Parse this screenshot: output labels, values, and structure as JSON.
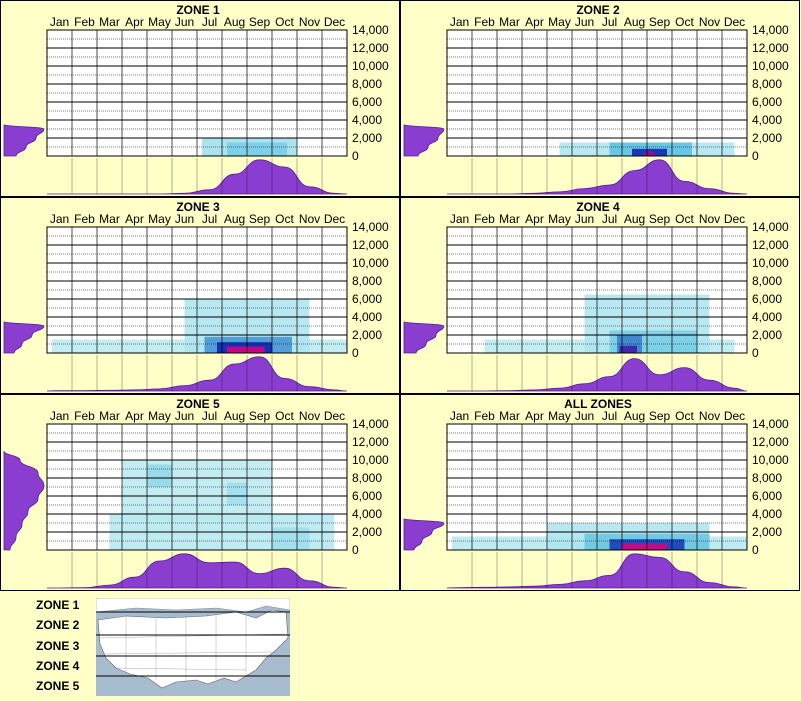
{
  "months": [
    "Jan",
    "Feb",
    "Mar",
    "Apr",
    "May",
    "Jun",
    "Jul",
    "Aug",
    "Sep",
    "Oct",
    "Nov",
    "Dec"
  ],
  "y_ticks": [
    "14,000",
    "12,000",
    "10,000",
    "8,000",
    "6,000",
    "4,000",
    "2,000",
    "0"
  ],
  "colors": {
    "background": "#ffffc8",
    "curve": "#8a3ed0",
    "heat_low": "#d6f6f6",
    "heat_mid": "#58c0e0",
    "heat_high": "#0a1eb0",
    "heat_peak": "#e0007a"
  },
  "chart_data": [
    {
      "type": "heatmap",
      "title": "ZONE 1",
      "x_categories": [
        "Jan",
        "Feb",
        "Mar",
        "Apr",
        "May",
        "Jun",
        "Jul",
        "Aug",
        "Sep",
        "Oct",
        "Nov",
        "Dec"
      ],
      "ylim": [
        0,
        14000
      ],
      "month_density": [
        0,
        0,
        0,
        0,
        0,
        0.02,
        0.12,
        0.55,
        0.95,
        0.75,
        0.2,
        0.02
      ],
      "elevation_density": [
        0.3,
        0.55,
        0.8,
        1.0
      ],
      "heat_cells": [
        {
          "month_start": 6.2,
          "month_end": 10,
          "elev_low": 0,
          "elev_high": 2000,
          "intensity": 0.2
        },
        {
          "month_start": 7.2,
          "month_end": 9.6,
          "elev_low": 0,
          "elev_high": 1500,
          "intensity": 0.35
        }
      ]
    },
    {
      "type": "heatmap",
      "title": "ZONE 2",
      "x_categories": [
        "Jan",
        "Feb",
        "Mar",
        "Apr",
        "May",
        "Jun",
        "Jul",
        "Aug",
        "Sep",
        "Oct",
        "Nov",
        "Dec"
      ],
      "ylim": [
        0,
        14000
      ],
      "month_density": [
        0,
        0,
        0,
        0.02,
        0.06,
        0.15,
        0.25,
        0.65,
        0.95,
        0.35,
        0.15,
        0.02
      ],
      "elevation_density": [
        0.35,
        0.6,
        0.85,
        1.0
      ],
      "heat_cells": [
        {
          "month_start": 4.5,
          "month_end": 11.5,
          "elev_low": 0,
          "elev_high": 1500,
          "intensity": 0.15
        },
        {
          "month_start": 6.5,
          "month_end": 9.8,
          "elev_low": 0,
          "elev_high": 1500,
          "intensity": 0.45
        },
        {
          "month_start": 7.4,
          "month_end": 8.8,
          "elev_low": 0,
          "elev_high": 800,
          "intensity": 0.8
        },
        {
          "month_start": 7.9,
          "month_end": 8.3,
          "elev_low": 0,
          "elev_high": 500,
          "intensity": 0.95
        }
      ]
    },
    {
      "type": "heatmap",
      "title": "ZONE 3",
      "x_categories": [
        "Jan",
        "Feb",
        "Mar",
        "Apr",
        "May",
        "Jun",
        "Jul",
        "Aug",
        "Sep",
        "Oct",
        "Nov",
        "Dec"
      ],
      "ylim": [
        0,
        14000
      ],
      "month_density": [
        0.01,
        0.01,
        0.02,
        0.03,
        0.06,
        0.15,
        0.3,
        0.75,
        0.95,
        0.35,
        0.12,
        0.03
      ],
      "elevation_density": [
        0.25,
        0.45,
        0.7,
        1.0
      ],
      "heat_cells": [
        {
          "month_start": 0.2,
          "month_end": 12,
          "elev_low": 0,
          "elev_high": 1500,
          "intensity": 0.1
        },
        {
          "month_start": 5.5,
          "month_end": 10.5,
          "elev_low": 0,
          "elev_high": 6000,
          "intensity": 0.15
        },
        {
          "month_start": 6.3,
          "month_end": 9.8,
          "elev_low": 0,
          "elev_high": 1800,
          "intensity": 0.55
        },
        {
          "month_start": 6.8,
          "month_end": 9.0,
          "elev_low": 0,
          "elev_high": 1200,
          "intensity": 0.8
        },
        {
          "month_start": 7.2,
          "month_end": 8.7,
          "elev_low": 0,
          "elev_high": 700,
          "intensity": 1.0
        }
      ]
    },
    {
      "type": "heatmap",
      "title": "ZONE 4",
      "x_categories": [
        "Jan",
        "Feb",
        "Mar",
        "Apr",
        "May",
        "Jun",
        "Jul",
        "Aug",
        "Sep",
        "Oct",
        "Nov",
        "Dec"
      ],
      "ylim": [
        0,
        14000
      ],
      "month_density": [
        0,
        0,
        0.01,
        0.03,
        0.08,
        0.2,
        0.4,
        0.9,
        0.45,
        0.65,
        0.3,
        0.08
      ],
      "elevation_density": [
        0.3,
        0.55,
        0.8,
        1.0
      ],
      "heat_cells": [
        {
          "month_start": 1.5,
          "month_end": 11.5,
          "elev_low": 0,
          "elev_high": 1500,
          "intensity": 0.1
        },
        {
          "month_start": 5.5,
          "month_end": 10.5,
          "elev_low": 0,
          "elev_high": 6500,
          "intensity": 0.15
        },
        {
          "month_start": 6.5,
          "month_end": 10.0,
          "elev_low": 0,
          "elev_high": 2500,
          "intensity": 0.35
        },
        {
          "month_start": 6.8,
          "month_end": 7.8,
          "elev_low": 0,
          "elev_high": 2000,
          "intensity": 0.6
        },
        {
          "month_start": 6.9,
          "month_end": 7.6,
          "elev_low": 0,
          "elev_high": 800,
          "intensity": 0.85
        }
      ]
    },
    {
      "type": "heatmap",
      "title": "ZONE 5",
      "x_categories": [
        "Jan",
        "Feb",
        "Mar",
        "Apr",
        "May",
        "Jun",
        "Jul",
        "Aug",
        "Sep",
        "Oct",
        "Nov",
        "Dec"
      ],
      "ylim": [
        0,
        14000
      ],
      "month_density": [
        0,
        0.01,
        0.08,
        0.3,
        0.75,
        0.95,
        0.7,
        0.72,
        0.4,
        0.55,
        0.2,
        0.02
      ],
      "elevation_density": [
        0.15,
        0.3,
        0.45,
        0.6,
        0.85,
        1.0,
        0.85,
        0.4
      ],
      "heat_cells": [
        {
          "month_start": 2.5,
          "month_end": 11.5,
          "elev_low": 0,
          "elev_high": 4000,
          "intensity": 0.12
        },
        {
          "month_start": 3.0,
          "month_end": 9.0,
          "elev_low": 3000,
          "elev_high": 10000,
          "intensity": 0.1
        },
        {
          "month_start": 4.0,
          "month_end": 5.0,
          "elev_low": 7000,
          "elev_high": 9500,
          "intensity": 0.25
        },
        {
          "month_start": 7.2,
          "month_end": 8.0,
          "elev_low": 5000,
          "elev_high": 7500,
          "intensity": 0.2
        },
        {
          "month_start": 9.0,
          "month_end": 10.5,
          "elev_low": 0,
          "elev_high": 2500,
          "intensity": 0.2
        }
      ]
    },
    {
      "type": "heatmap",
      "title": "ALL ZONES",
      "x_categories": [
        "Jan",
        "Feb",
        "Mar",
        "Apr",
        "May",
        "Jun",
        "Jul",
        "Aug",
        "Sep",
        "Oct",
        "Nov",
        "Dec"
      ],
      "ylim": [
        0,
        14000
      ],
      "month_density": [
        0.01,
        0.02,
        0.03,
        0.05,
        0.1,
        0.2,
        0.35,
        0.95,
        0.85,
        0.45,
        0.15,
        0.03
      ],
      "elevation_density": [
        0.25,
        0.45,
        0.7,
        1.0
      ],
      "heat_cells": [
        {
          "month_start": 0.2,
          "month_end": 12,
          "elev_low": 0,
          "elev_high": 1500,
          "intensity": 0.12
        },
        {
          "month_start": 4.0,
          "month_end": 10.5,
          "elev_low": 0,
          "elev_high": 3000,
          "intensity": 0.15
        },
        {
          "month_start": 5.5,
          "month_end": 10.5,
          "elev_low": 0,
          "elev_high": 1800,
          "intensity": 0.4
        },
        {
          "month_start": 6.5,
          "month_end": 9.5,
          "elev_low": 0,
          "elev_high": 1200,
          "intensity": 0.75
        },
        {
          "month_start": 7.0,
          "month_end": 8.8,
          "elev_low": 0,
          "elev_high": 700,
          "intensity": 1.0
        }
      ]
    }
  ],
  "legend": {
    "zones": [
      "ZONE 1",
      "ZONE 2",
      "ZONE 3",
      "ZONE 4",
      "ZONE 5"
    ]
  }
}
